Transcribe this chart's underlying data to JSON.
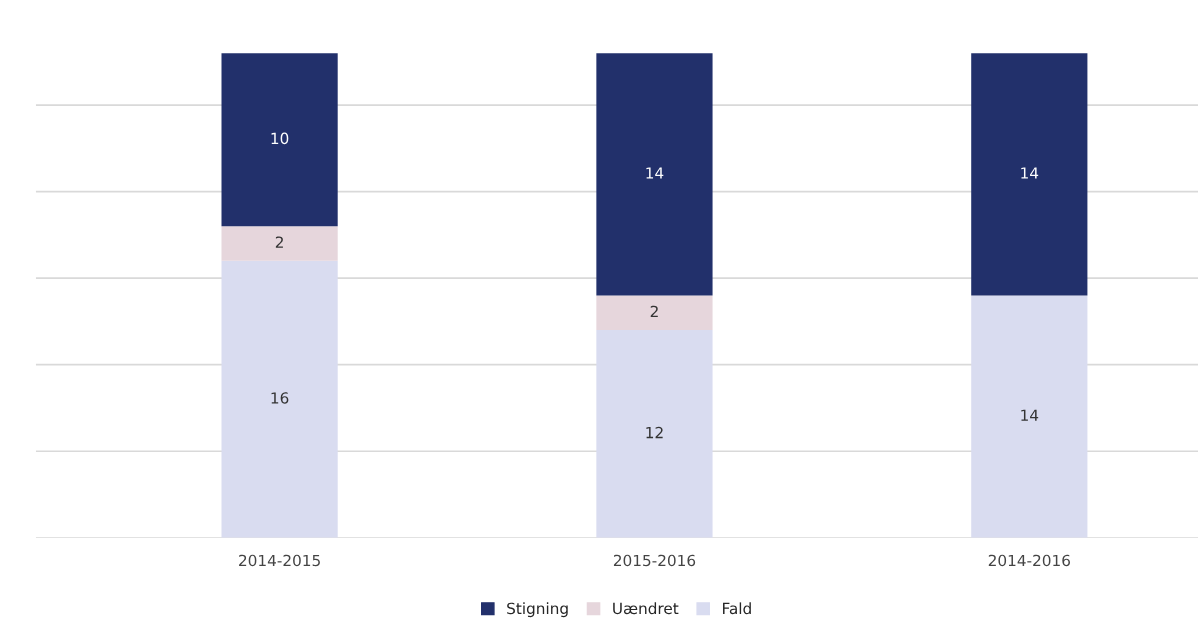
{
  "chart_data": {
    "type": "bar",
    "stacked": true,
    "categories": [
      "2014-2015",
      "2015-2016",
      "2014-2016"
    ],
    "series": [
      {
        "name": "Fald",
        "color": "#d9dcf0",
        "values": [
          16,
          12,
          14
        ]
      },
      {
        "name": "Uændret",
        "color": "#e6d6dc",
        "values": [
          2,
          2,
          null
        ]
      },
      {
        "name": "Stigning",
        "color": "#22306b",
        "values": [
          10,
          14,
          14
        ]
      }
    ],
    "tick_labels": "x",
    "grid": "y",
    "legend": "bottom",
    "data_labels": true
  }
}
